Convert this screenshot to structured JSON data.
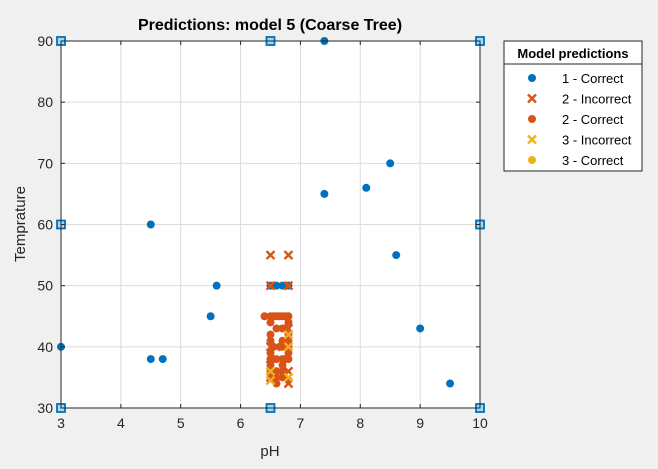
{
  "chart_data": {
    "type": "scatter",
    "title": "Predictions: model 5 (Coarse Tree)",
    "xlabel": "pH",
    "ylabel": "Temprature",
    "xlim": [
      3,
      10
    ],
    "ylim": [
      30,
      90
    ],
    "xticks": [
      "3",
      "4",
      "5",
      "6",
      "7",
      "8",
      "9",
      "10"
    ],
    "yticks": [
      "30",
      "40",
      "50",
      "60",
      "70",
      "80",
      "90"
    ],
    "grid": true,
    "legend": {
      "title": "Model predictions",
      "placement": "outside-top-right"
    },
    "colors": {
      "blue": "#0072bd",
      "orange": "#d95319",
      "yellow": "#edb120"
    },
    "series": [
      {
        "name": "1 - Correct",
        "marker": "dot",
        "color": "#0072bd",
        "points": [
          [
            3,
            40
          ],
          [
            4.5,
            38
          ],
          [
            4.7,
            38
          ],
          [
            4.5,
            60
          ],
          [
            5.5,
            45
          ],
          [
            5.6,
            50
          ],
          [
            6.5,
            50
          ],
          [
            6.6,
            50
          ],
          [
            6.7,
            50
          ],
          [
            6.8,
            50
          ],
          [
            7.4,
            90
          ],
          [
            7.4,
            65
          ],
          [
            8.1,
            66
          ],
          [
            8.5,
            70
          ],
          [
            8.6,
            55
          ],
          [
            9.0,
            43
          ],
          [
            9.5,
            34
          ]
        ]
      },
      {
        "name": "2 - Incorrect",
        "marker": "x",
        "color": "#d95319",
        "points": [
          [
            6.5,
            55
          ],
          [
            6.8,
            55
          ],
          [
            6.5,
            50
          ],
          [
            6.8,
            50
          ],
          [
            6.5,
            40
          ],
          [
            6.6,
            40
          ],
          [
            6.8,
            43
          ],
          [
            6.5,
            37
          ],
          [
            6.8,
            36
          ],
          [
            6.5,
            35
          ],
          [
            6.8,
            34
          ]
        ]
      },
      {
        "name": "2 - Correct",
        "marker": "dot",
        "color": "#d95319",
        "points": [
          [
            6.4,
            45
          ],
          [
            6.5,
            45
          ],
          [
            6.55,
            45
          ],
          [
            6.6,
            45
          ],
          [
            6.65,
            45
          ],
          [
            6.7,
            45
          ],
          [
            6.75,
            45
          ],
          [
            6.8,
            45
          ],
          [
            6.5,
            44
          ],
          [
            6.8,
            44
          ],
          [
            6.6,
            43
          ],
          [
            6.7,
            43
          ],
          [
            6.5,
            42
          ],
          [
            6.8,
            42
          ],
          [
            6.5,
            41
          ],
          [
            6.7,
            41
          ],
          [
            6.8,
            41
          ],
          [
            6.55,
            40
          ],
          [
            6.65,
            40
          ],
          [
            6.7,
            40
          ],
          [
            6.75,
            40
          ],
          [
            6.8,
            40
          ],
          [
            6.5,
            39
          ],
          [
            6.8,
            39
          ],
          [
            6.5,
            38
          ],
          [
            6.55,
            38
          ],
          [
            6.6,
            38
          ],
          [
            6.7,
            38
          ],
          [
            6.75,
            38
          ],
          [
            6.8,
            38
          ],
          [
            6.5,
            37
          ],
          [
            6.7,
            37
          ],
          [
            6.5,
            36
          ],
          [
            6.6,
            36
          ],
          [
            6.7,
            36
          ],
          [
            6.5,
            35
          ],
          [
            6.6,
            35
          ],
          [
            6.7,
            35
          ],
          [
            6.6,
            34
          ],
          [
            6.8,
            34.5
          ]
        ]
      },
      {
        "name": "3 - Incorrect",
        "marker": "x",
        "color": "#edb120",
        "points": [
          [
            6.8,
            42
          ],
          [
            6.8,
            40
          ],
          [
            6.5,
            36
          ],
          [
            6.5,
            34.5
          ],
          [
            6.8,
            35
          ]
        ]
      },
      {
        "name": "3 - Correct",
        "marker": "dot",
        "color": "#edb120",
        "points": []
      }
    ],
    "boundary_markers": {
      "marker": "square",
      "edge_color": "#0072bd",
      "fill_color": "#a8d8f0",
      "points": [
        [
          3,
          90
        ],
        [
          6.5,
          90
        ],
        [
          10,
          90
        ],
        [
          3,
          60
        ],
        [
          10,
          60
        ],
        [
          3,
          30
        ],
        [
          6.5,
          30
        ],
        [
          10,
          30
        ]
      ]
    }
  }
}
